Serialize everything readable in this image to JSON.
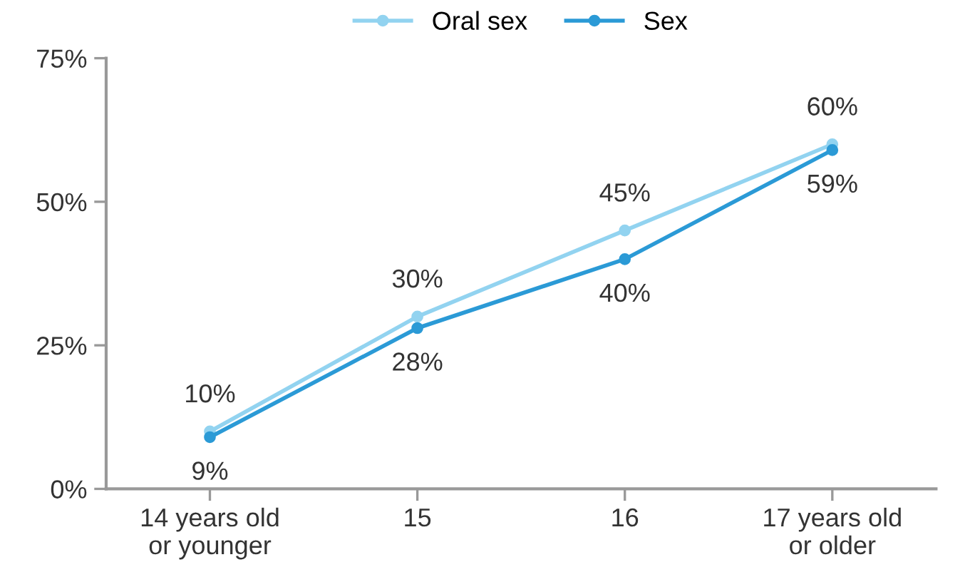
{
  "chart_data": {
    "type": "line",
    "categories": [
      "14 years old\nor younger",
      "15",
      "16",
      "17 years old\nor older"
    ],
    "series": [
      {
        "name": "Oral sex",
        "color": "#92d3f0",
        "values": [
          10,
          30,
          45,
          60
        ],
        "value_labels": [
          "10%",
          "30%",
          "45%",
          "60%"
        ]
      },
      {
        "name": "Sex",
        "color": "#2b9ad6",
        "values": [
          9,
          28,
          40,
          59
        ],
        "value_labels": [
          "9%",
          "28%",
          "40%",
          "59%"
        ]
      }
    ],
    "ylim": [
      0,
      75
    ],
    "yticks": [
      {
        "value": 0,
        "label": "0%"
      },
      {
        "value": 25,
        "label": "25%"
      },
      {
        "value": 50,
        "label": "50%"
      },
      {
        "value": 75,
        "label": "75%"
      }
    ],
    "legend": "top",
    "marker": "circle",
    "line_style": "solid",
    "grid": false
  }
}
